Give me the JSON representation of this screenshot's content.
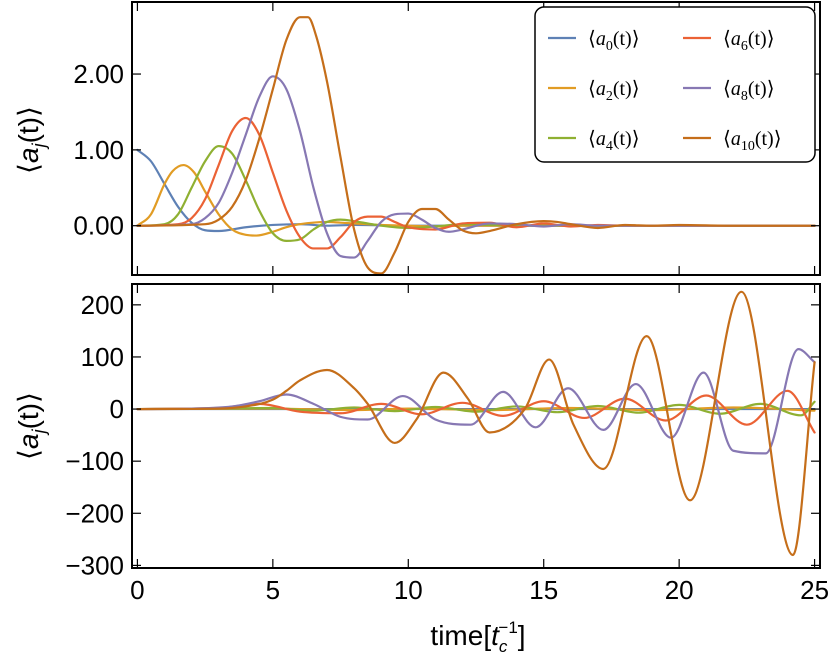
{
  "chart_data": [
    {
      "type": "line",
      "panel": "top",
      "ylabel": "⟨a_j(t)⟩",
      "ylabel_parts": {
        "open": "⟨",
        "var": "a",
        "sub": "j",
        "mid": "(t)",
        "close": "⟩"
      },
      "xlim": [
        -0.2,
        25.2
      ],
      "ylim": [
        -0.65,
        2.95
      ],
      "yticks": [
        0,
        1,
        2
      ],
      "ytick_labels": [
        "0.00",
        "1.00",
        "2.00"
      ],
      "xticks": [
        0,
        5,
        10,
        15,
        20,
        25
      ],
      "legend_position": "top-right",
      "series": [
        {
          "name": "a0",
          "legend_sub": "0",
          "color": "#5E81B5",
          "x": [
            0,
            0.5,
            1,
            1.5,
            2,
            2.5,
            3,
            4,
            5,
            6,
            7,
            8,
            10,
            13,
            16,
            20,
            25
          ],
          "values": [
            1.0,
            0.85,
            0.55,
            0.25,
            0.04,
            -0.06,
            -0.07,
            -0.02,
            0.01,
            0.02,
            0.0,
            0.01,
            0.0,
            0.0,
            0.0,
            0.0,
            0.0
          ]
        },
        {
          "name": "a2",
          "legend_sub": "2",
          "color": "#E19C24",
          "x": [
            0,
            0.5,
            1,
            1.3,
            1.7,
            2.1,
            2.5,
            3,
            3.5,
            4,
            4.4,
            5,
            5.5,
            6,
            7,
            7.5,
            8,
            9,
            10,
            11,
            12,
            14,
            17,
            20,
            25
          ],
          "values": [
            0,
            0.15,
            0.55,
            0.72,
            0.8,
            0.7,
            0.45,
            0.15,
            -0.05,
            -0.12,
            -0.13,
            -0.08,
            -0.02,
            0.02,
            0.05,
            0.04,
            0.03,
            0.01,
            0.0,
            -0.01,
            0.0,
            0.0,
            0.0,
            0.0,
            0.0
          ]
        },
        {
          "name": "a4",
          "legend_sub": "4",
          "color": "#8FB032",
          "x": [
            0,
            1,
            1.5,
            2,
            2.5,
            3,
            3.5,
            4,
            4.5,
            5,
            5.5,
            6,
            6.5,
            7,
            7.5,
            8,
            8.5,
            9,
            10,
            11,
            12,
            13,
            15,
            18,
            21,
            25
          ],
          "values": [
            0,
            0.02,
            0.15,
            0.5,
            0.85,
            1.05,
            0.95,
            0.6,
            0.2,
            -0.1,
            -0.2,
            -0.18,
            -0.05,
            0.05,
            0.08,
            0.06,
            0.03,
            0.0,
            -0.03,
            -0.01,
            0.02,
            0.01,
            0.0,
            0.0,
            0.0,
            0.0
          ]
        },
        {
          "name": "a6",
          "legend_sub": "6",
          "color": "#EB6235",
          "x": [
            0,
            1.5,
            2,
            2.5,
            3,
            3.5,
            4,
            4.5,
            5,
            5.5,
            6,
            6.5,
            7,
            7.5,
            8,
            8.5,
            9,
            9.5,
            10,
            11,
            12,
            13,
            14,
            15,
            16,
            17,
            18,
            20,
            22,
            25
          ],
          "values": [
            0,
            0.02,
            0.1,
            0.35,
            0.8,
            1.25,
            1.42,
            1.2,
            0.7,
            0.2,
            -0.15,
            -0.3,
            -0.3,
            -0.15,
            0.05,
            0.12,
            0.12,
            0.05,
            -0.02,
            -0.05,
            0.03,
            0.04,
            -0.02,
            0.03,
            -0.01,
            0.01,
            0.0,
            0.0,
            0.0,
            0.0
          ]
        },
        {
          "name": "a8",
          "legend_sub": "8",
          "color": "#8778B3",
          "x": [
            0,
            2,
            2.5,
            3,
            3.5,
            4,
            4.5,
            5,
            5.5,
            6,
            6.5,
            7,
            7.5,
            8,
            8.5,
            9,
            9.5,
            10,
            10.5,
            11,
            11.5,
            12,
            13,
            14,
            15,
            16,
            17,
            18,
            20,
            22,
            25
          ],
          "values": [
            0,
            0.02,
            0.1,
            0.3,
            0.7,
            1.2,
            1.7,
            1.97,
            1.8,
            1.25,
            0.5,
            -0.1,
            -0.4,
            -0.42,
            -0.2,
            0.05,
            0.15,
            0.16,
            0.08,
            -0.03,
            -0.08,
            -0.05,
            0.03,
            0.02,
            -0.01,
            0.02,
            0.0,
            0.0,
            0.0,
            0.0,
            0.0
          ]
        },
        {
          "name": "a10",
          "legend_sub": "10",
          "color": "#C56E1A",
          "x": [
            0,
            2.5,
            3,
            3.5,
            4,
            4.5,
            5,
            5.5,
            6,
            6.3,
            6.6,
            7,
            7.5,
            8,
            8.5,
            9,
            9.5,
            10,
            10.5,
            11,
            11.5,
            12,
            12.5,
            13,
            14,
            15,
            15.5,
            16,
            17,
            18,
            19,
            20,
            22,
            25
          ],
          "values": [
            0,
            0.02,
            0.08,
            0.25,
            0.6,
            1.15,
            1.8,
            2.45,
            2.75,
            2.75,
            2.5,
            1.9,
            0.9,
            -0.05,
            -0.55,
            -0.63,
            -0.35,
            0.05,
            0.22,
            0.22,
            0.08,
            -0.06,
            -0.1,
            -0.07,
            0.02,
            0.06,
            0.05,
            0.02,
            -0.03,
            0.01,
            0.0,
            0.01,
            0.0,
            0.0
          ]
        }
      ]
    },
    {
      "type": "line",
      "panel": "bottom",
      "ylabel": "⟨a_j(t)⟩",
      "ylabel_parts": {
        "open": "⟨",
        "var": "a",
        "sub": "j",
        "mid": "(t)",
        "close": "⟩"
      },
      "xlabel": "time[t_c^-1]",
      "xlabel_parts": {
        "pre": "time[",
        "var": "t",
        "sub": "c",
        "sup": "−1",
        "post": "]"
      },
      "xlim": [
        -0.2,
        25.2
      ],
      "ylim": [
        -305,
        240
      ],
      "yticks": [
        200,
        100,
        0,
        -100,
        -200,
        -300
      ],
      "ytick_labels": [
        "200",
        "100",
        "0",
        "−100",
        "−200",
        "−300"
      ],
      "xticks": [
        0,
        5,
        10,
        15,
        20,
        25
      ],
      "xtick_labels": [
        "0",
        "5",
        "10",
        "15",
        "20",
        "25"
      ],
      "series": [
        {
          "name": "a0",
          "color": "#5E81B5",
          "x": [
            0,
            5,
            10,
            15,
            20,
            25
          ],
          "values": [
            0,
            0,
            0,
            0,
            0,
            0
          ]
        },
        {
          "name": "a2",
          "color": "#E19C24",
          "x": [
            0,
            5,
            8,
            10,
            13,
            16,
            19,
            22,
            25
          ],
          "values": [
            0,
            1,
            -2,
            1,
            -2,
            2,
            -2,
            3,
            -3
          ]
        },
        {
          "name": "a4",
          "color": "#8FB032",
          "x": [
            0,
            3,
            5,
            6.5,
            8,
            9.5,
            11,
            12.5,
            14,
            15.5,
            17,
            18.5,
            20,
            21.5,
            23,
            24.5,
            25
          ],
          "values": [
            0,
            1,
            2,
            -3,
            3,
            -4,
            4,
            -5,
            5,
            -6,
            6,
            -7,
            8,
            -9,
            10,
            -12,
            14
          ]
        },
        {
          "name": "a6",
          "color": "#EB6235",
          "x": [
            0,
            3,
            4.5,
            6,
            7.5,
            9,
            10.5,
            12,
            13.5,
            15,
            16.5,
            18,
            19.5,
            21,
            22.5,
            24,
            25
          ],
          "values": [
            0,
            2,
            10,
            -5,
            -8,
            10,
            -10,
            12,
            -13,
            15,
            -17,
            20,
            -22,
            26,
            -30,
            35,
            -45
          ]
        },
        {
          "name": "a8",
          "color": "#8778B3",
          "x": [
            0,
            2,
            3.5,
            4.5,
            5.5,
            6.5,
            7.5,
            8.5,
            9.8,
            11,
            12.3,
            13.5,
            14.7,
            15.9,
            17.2,
            18.4,
            19.7,
            20.9,
            22,
            23.2,
            24.4,
            25
          ],
          "values": [
            0,
            1,
            5,
            15,
            28,
            10,
            -15,
            -20,
            25,
            -20,
            -30,
            33,
            -35,
            40,
            -40,
            48,
            -55,
            70,
            -80,
            -85,
            115,
            90
          ]
        },
        {
          "name": "a10",
          "color": "#C56E1A",
          "x": [
            0,
            3,
            4,
            5,
            5.5,
            6,
            7,
            8,
            8.5,
            9.5,
            10.3,
            11.3,
            12.2,
            13,
            14.3,
            15.2,
            16.1,
            17.2,
            18.8,
            20.4,
            22.3,
            24.2,
            25
          ],
          "values": [
            0,
            1,
            5,
            18,
            35,
            55,
            75,
            40,
            10,
            -65,
            -20,
            70,
            20,
            -45,
            0,
            95,
            -30,
            -115,
            140,
            -175,
            225,
            -280,
            90
          ]
        }
      ]
    }
  ]
}
